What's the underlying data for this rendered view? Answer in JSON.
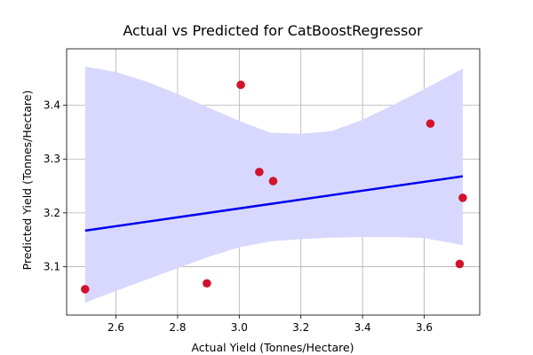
{
  "chart_data": {
    "type": "scatter",
    "title": "Actual vs Predicted for CatBoostRegressor",
    "xlabel": "Actual Yield (Tonnes/Hectare)",
    "ylabel": "Predicted Yield (Tonnes/Hectare)",
    "xlim": [
      2.44,
      3.78
    ],
    "ylim": [
      3.01,
      3.505
    ],
    "x_ticks": [
      2.6,
      2.8,
      3.0,
      3.2,
      3.4,
      3.6
    ],
    "x_tick_labels": [
      "2.6",
      "2.8",
      "3.0",
      "3.2",
      "3.4",
      "3.6"
    ],
    "y_ticks": [
      3.1,
      3.2,
      3.3,
      3.4
    ],
    "y_tick_labels": [
      "3.1",
      "3.2",
      "3.3",
      "3.4"
    ],
    "grid": true,
    "points": [
      {
        "x": 2.5,
        "y": 3.058
      },
      {
        "x": 2.895,
        "y": 3.069
      },
      {
        "x": 3.005,
        "y": 3.438
      },
      {
        "x": 3.065,
        "y": 3.276
      },
      {
        "x": 3.11,
        "y": 3.259
      },
      {
        "x": 3.62,
        "y": 3.366
      },
      {
        "x": 3.715,
        "y": 3.105
      },
      {
        "x": 3.725,
        "y": 3.228
      }
    ],
    "regression_line": {
      "x": [
        2.5,
        3.725
      ],
      "y": [
        3.167,
        3.268
      ]
    },
    "confidence_band": {
      "x": [
        2.5,
        2.6,
        2.7,
        2.8,
        2.9,
        3.0,
        3.1,
        3.2,
        3.3,
        3.4,
        3.5,
        3.6,
        3.725
      ],
      "upper": [
        3.472,
        3.462,
        3.444,
        3.421,
        3.396,
        3.371,
        3.349,
        3.347,
        3.352,
        3.373,
        3.401,
        3.43,
        3.468
      ],
      "lower": [
        3.033,
        3.055,
        3.076,
        3.097,
        3.118,
        3.136,
        3.147,
        3.151,
        3.154,
        3.155,
        3.155,
        3.153,
        3.14
      ]
    },
    "colors": {
      "points": "#d0142c",
      "line": "#0000ee",
      "band": "#d8d8ff"
    }
  }
}
